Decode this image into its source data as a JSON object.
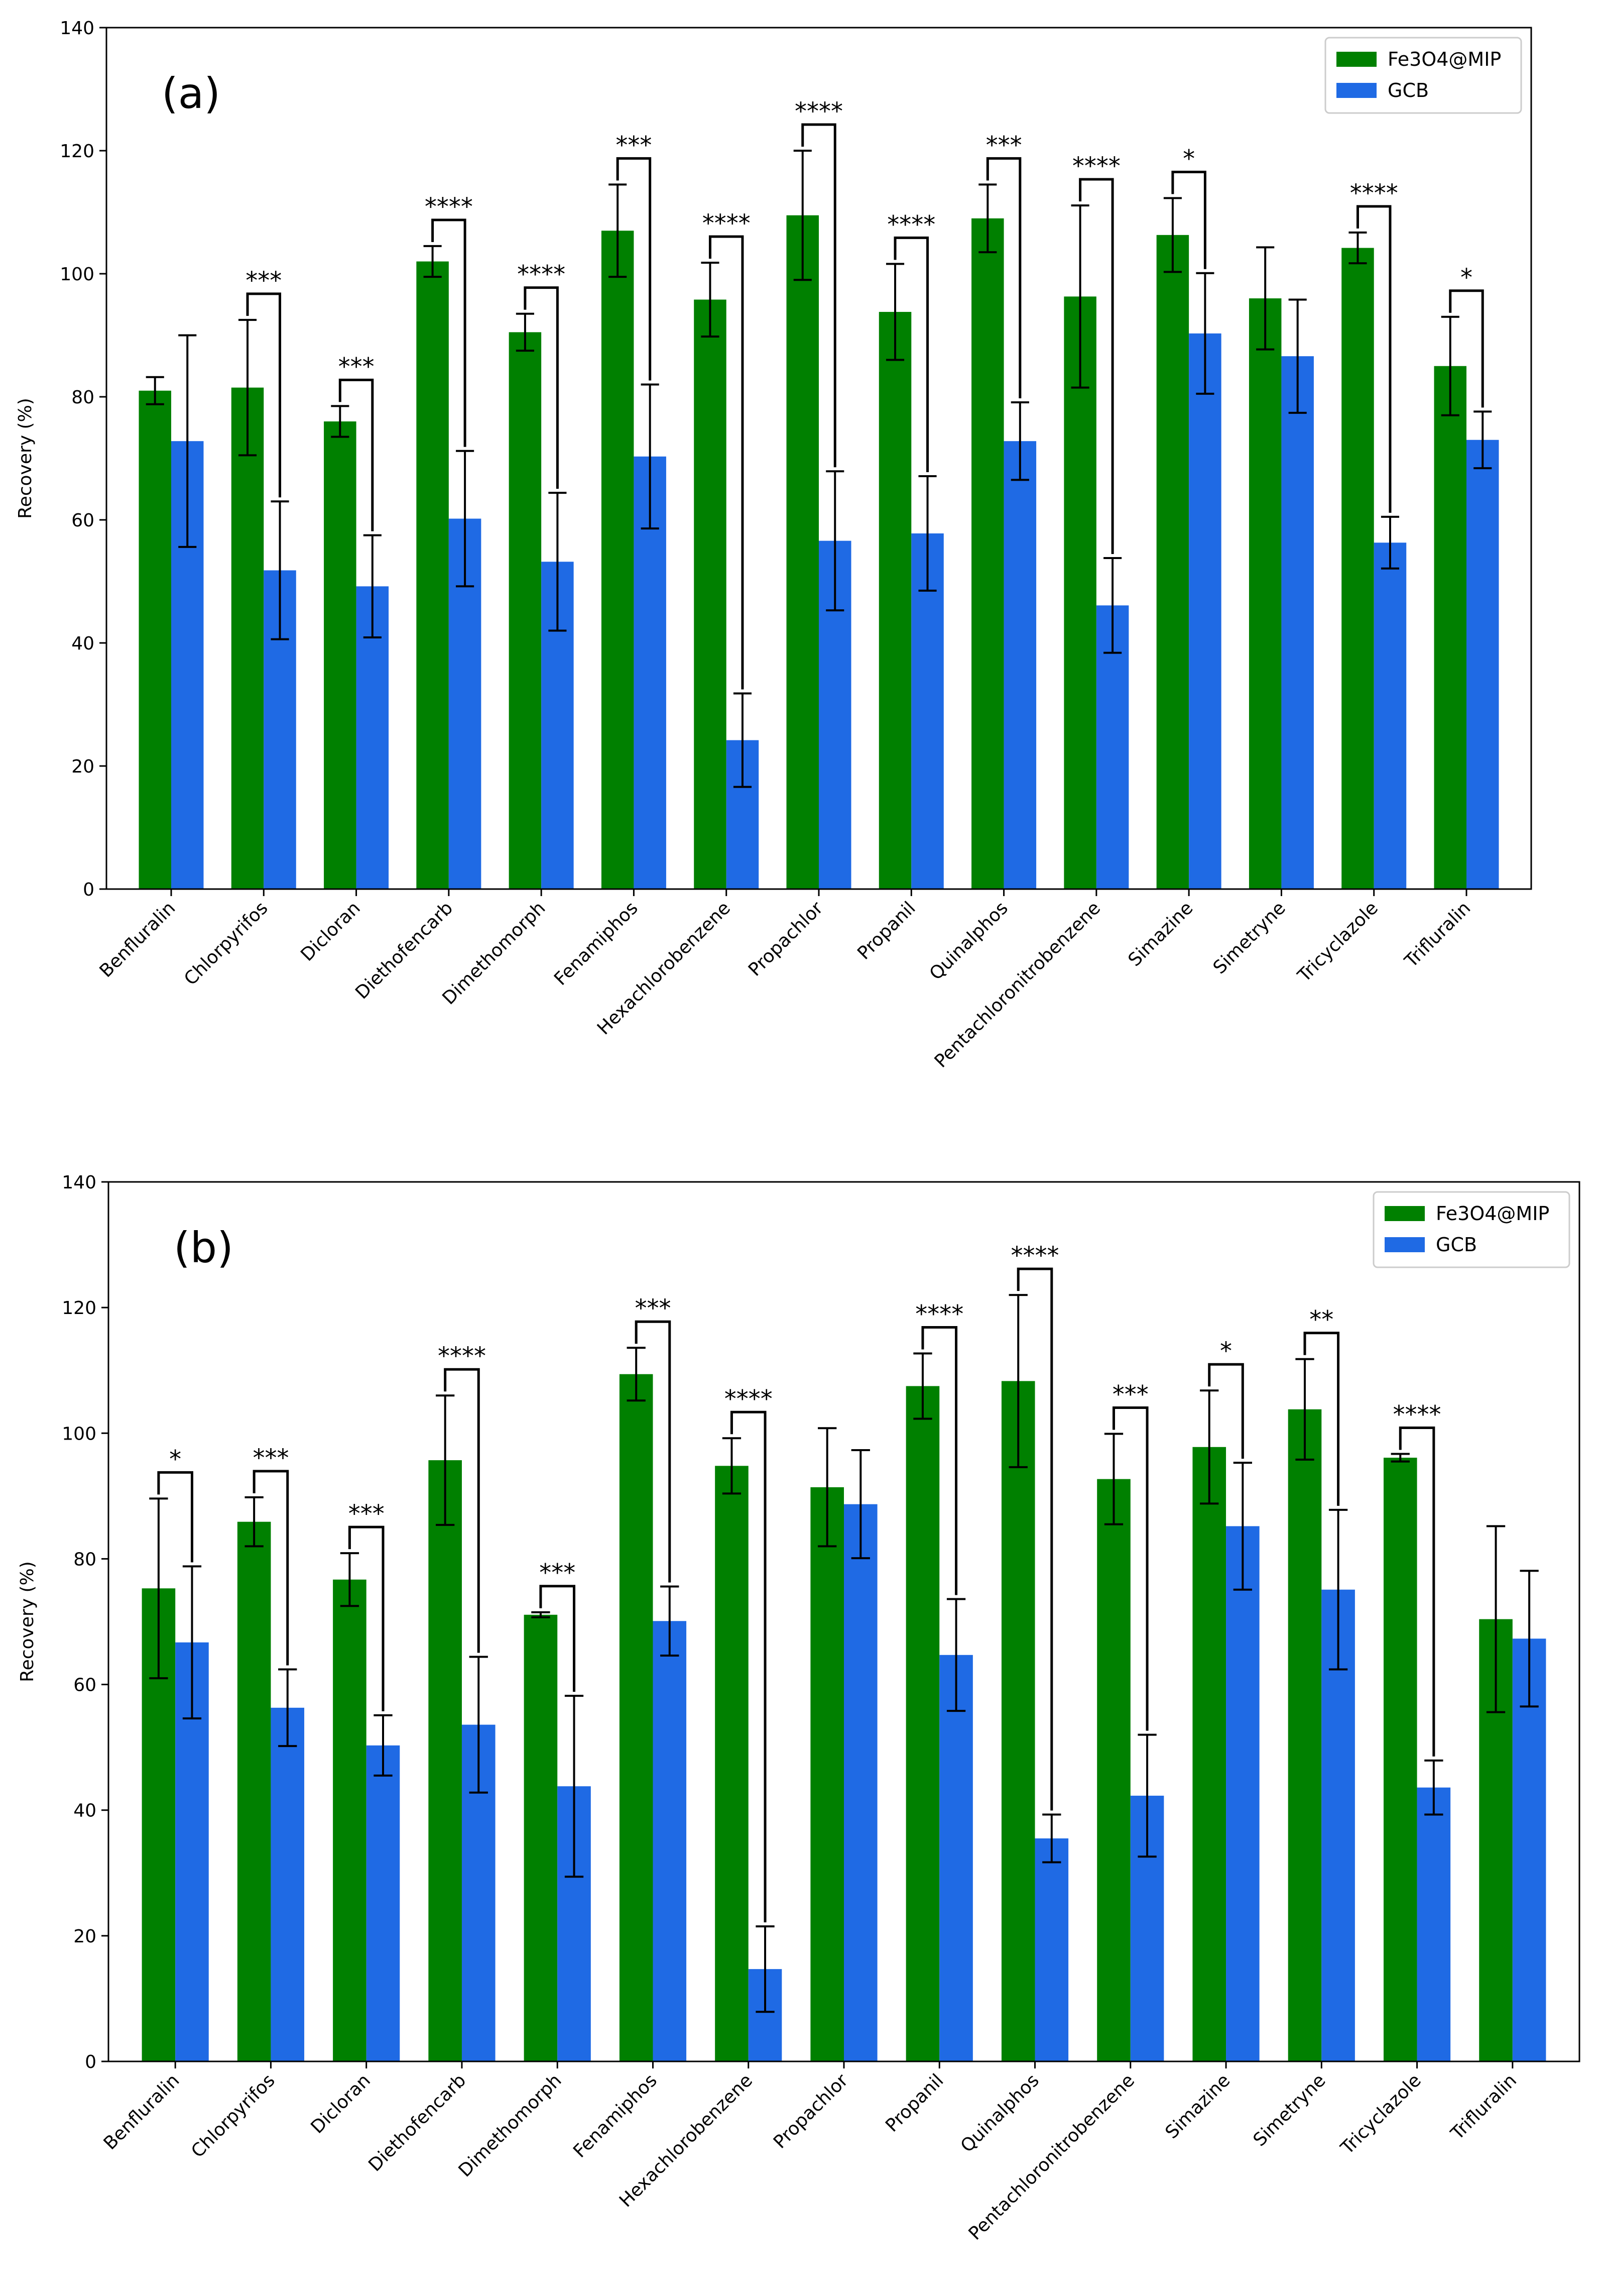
{
  "colors": {
    "mip": "#008000",
    "gcb": "#1f6ae4",
    "axis": "#000000"
  },
  "chart_data": [
    {
      "type": "bar",
      "panel_label": "(a)",
      "ylabel": "Recovery (%)",
      "ylim": [
        0,
        140
      ],
      "yticks": [
        0,
        20,
        40,
        60,
        80,
        100,
        120,
        140
      ],
      "legend_position": "top-right",
      "categories": [
        "Benfluralin",
        "Chlorpyrifos",
        "Dicloran",
        "Diethofencarb",
        "Dimethomorph",
        "Fenamiphos",
        "Hexachlorobenzene",
        "Propachlor",
        "Propanil",
        "Quinalphos",
        "Pentachloronitrobenzene",
        "Simazine",
        "Simetryne",
        "Tricyclazole",
        "Trifluralin"
      ],
      "series": [
        {
          "name": "Fe3O4@MIP",
          "color": "#008000",
          "values": [
            81,
            81.5,
            76,
            102,
            90.5,
            107,
            95.8,
            109.5,
            93.8,
            109,
            96.3,
            106.3,
            96,
            104.2,
            85
          ],
          "errors": [
            2.2,
            11,
            2.5,
            2.5,
            3,
            7.5,
            6,
            10.5,
            7.8,
            5.5,
            14.8,
            6,
            8.3,
            2.5,
            8
          ]
        },
        {
          "name": "GCB",
          "color": "#1f6ae4",
          "values": [
            72.8,
            51.8,
            49.2,
            60.2,
            53.2,
            70.3,
            24.2,
            56.6,
            57.8,
            72.8,
            46.1,
            90.3,
            86.6,
            56.3,
            73
          ],
          "errors": [
            17.2,
            11.2,
            8.3,
            11,
            11.2,
            11.7,
            7.6,
            11.3,
            9.3,
            6.3,
            7.7,
            9.8,
            9.2,
            4.2,
            4.6
          ]
        }
      ],
      "significance": [
        {
          "category": 1,
          "stars": "***"
        },
        {
          "category": 2,
          "stars": "***"
        },
        {
          "category": 3,
          "stars": "****"
        },
        {
          "category": 4,
          "stars": "****"
        },
        {
          "category": 5,
          "stars": "***"
        },
        {
          "category": 6,
          "stars": "****"
        },
        {
          "category": 7,
          "stars": "****"
        },
        {
          "category": 8,
          "stars": "****"
        },
        {
          "category": 9,
          "stars": "***"
        },
        {
          "category": 10,
          "stars": "****"
        },
        {
          "category": 11,
          "stars": "*"
        },
        {
          "category": 13,
          "stars": "****"
        },
        {
          "category": 14,
          "stars": "*"
        }
      ]
    },
    {
      "type": "bar",
      "panel_label": "(b)",
      "ylabel": "Recovery (%)",
      "ylim": [
        0,
        140
      ],
      "yticks": [
        0,
        20,
        40,
        60,
        80,
        100,
        120,
        140
      ],
      "legend_position": "top-right",
      "categories": [
        "Benfluralin",
        "Chlorpyrifos",
        "Dicloran",
        "Diethofencarb",
        "Dimethomorph",
        "Fenamiphos",
        "Hexachlorobenzene",
        "Propachlor",
        "Propanil",
        "Quinalphos",
        "Pentachloronitrobenzene",
        "Simazine",
        "Simetryne",
        "Tricyclazole",
        "Trifluralin"
      ],
      "series": [
        {
          "name": "Fe3O4@MIP",
          "color": "#008000",
          "values": [
            75.3,
            85.9,
            76.7,
            95.7,
            71.1,
            109.4,
            94.8,
            91.4,
            107.5,
            108.3,
            92.7,
            97.8,
            103.8,
            96.1,
            70.4
          ],
          "errors": [
            14.3,
            3.9,
            4.2,
            10.3,
            0.4,
            4.2,
            4.4,
            9.4,
            5.2,
            13.7,
            7.2,
            9,
            8,
            0.6,
            14.8
          ]
        },
        {
          "name": "GCB",
          "color": "#1f6ae4",
          "values": [
            66.7,
            56.3,
            50.3,
            53.6,
            43.8,
            70.1,
            14.7,
            88.7,
            64.7,
            35.5,
            42.3,
            85.2,
            75.1,
            43.6,
            67.3
          ],
          "errors": [
            12.1,
            6.1,
            4.8,
            10.8,
            14.4,
            5.5,
            6.8,
            8.6,
            8.9,
            3.8,
            9.7,
            10.1,
            12.7,
            4.3,
            10.8
          ]
        }
      ],
      "significance": [
        {
          "category": 0,
          "stars": "*"
        },
        {
          "category": 1,
          "stars": "***"
        },
        {
          "category": 2,
          "stars": "***"
        },
        {
          "category": 3,
          "stars": "****"
        },
        {
          "category": 4,
          "stars": "***"
        },
        {
          "category": 5,
          "stars": "***"
        },
        {
          "category": 6,
          "stars": "****"
        },
        {
          "category": 8,
          "stars": "****"
        },
        {
          "category": 9,
          "stars": "****"
        },
        {
          "category": 10,
          "stars": "***"
        },
        {
          "category": 11,
          "stars": "*"
        },
        {
          "category": 12,
          "stars": "**"
        },
        {
          "category": 13,
          "stars": "****"
        }
      ]
    }
  ]
}
